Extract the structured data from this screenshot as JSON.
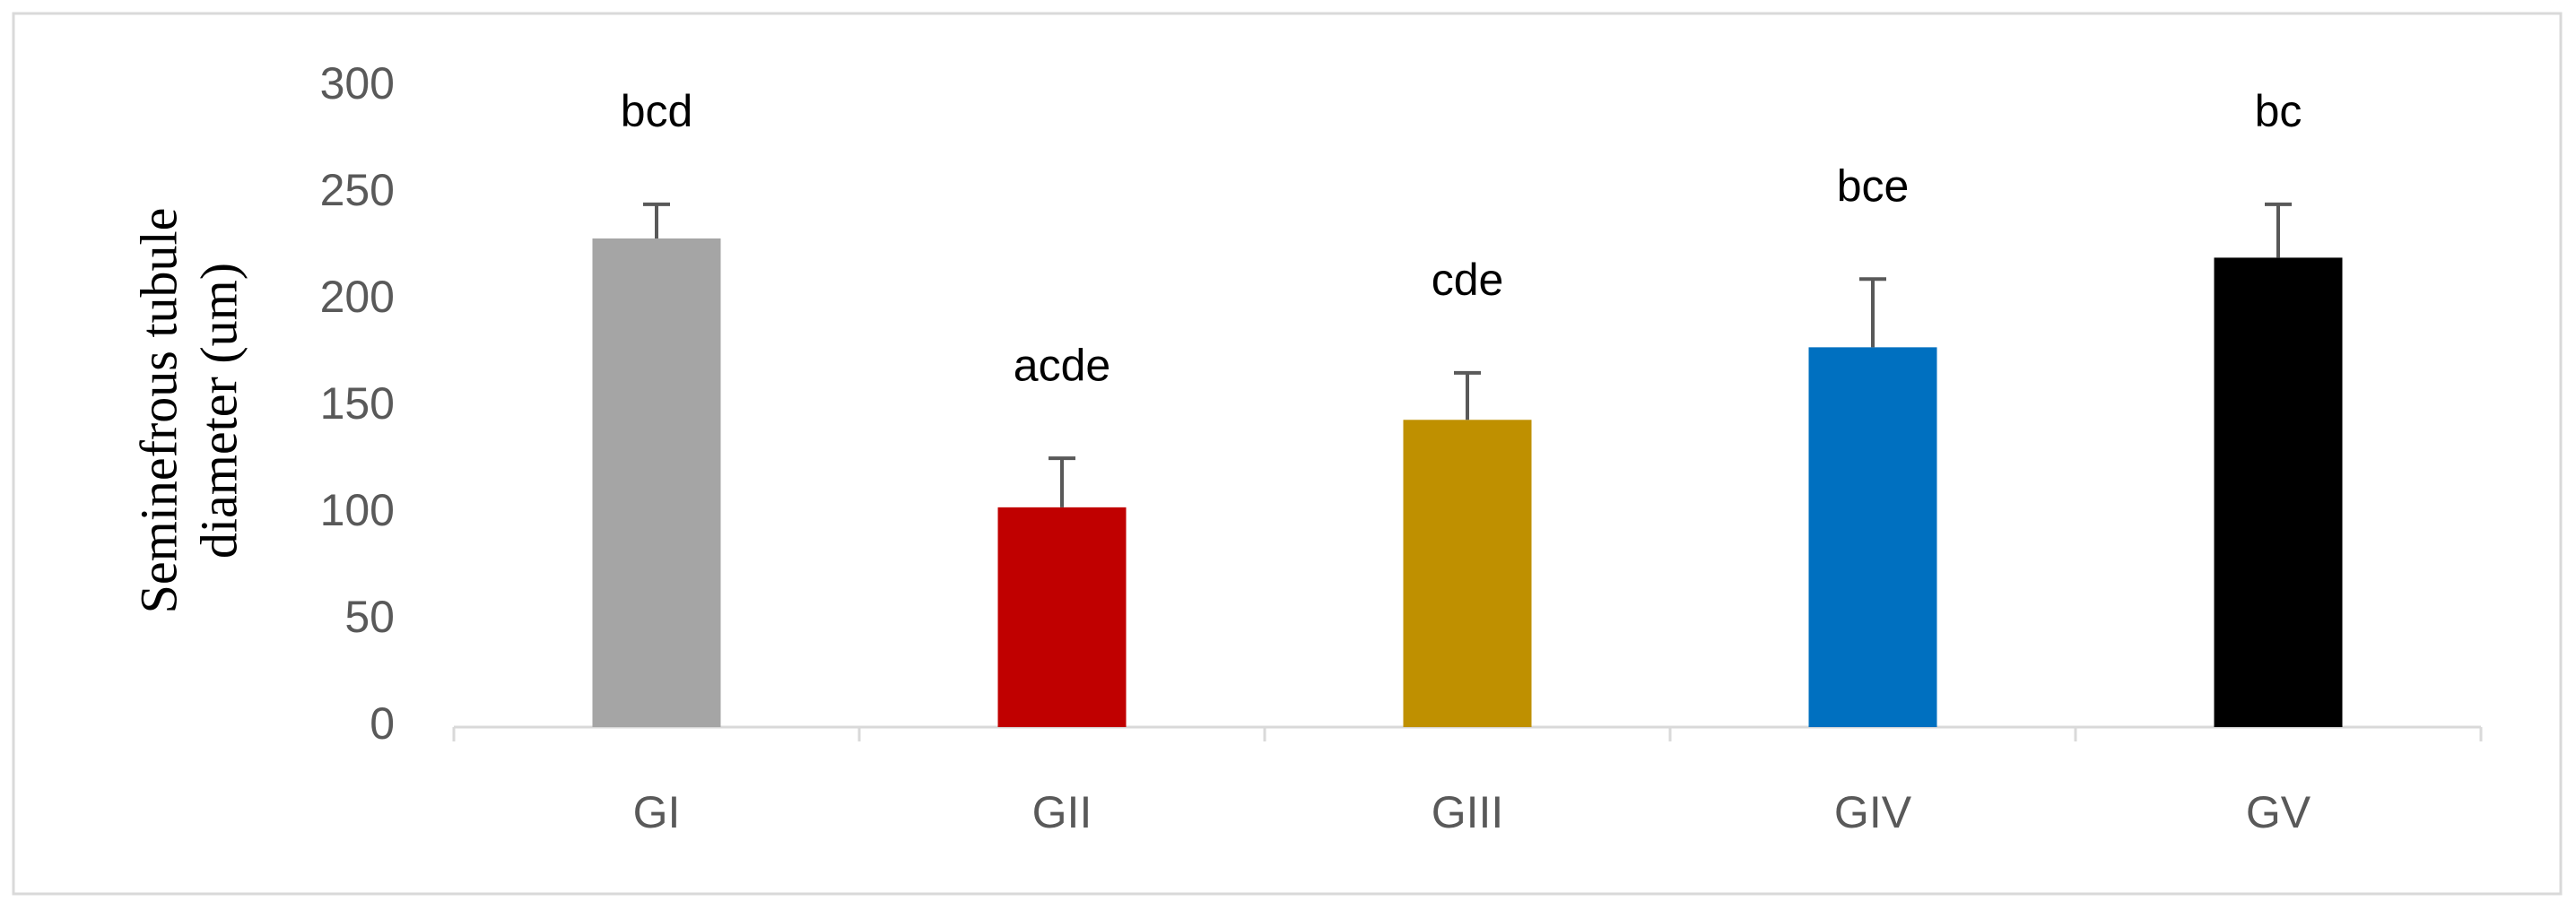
{
  "chart_data": {
    "type": "bar",
    "y_label": [
      "Seminefrous tubule",
      "diameter (um)"
    ],
    "categories": [
      "GI",
      "GII",
      "GIII",
      "GIV",
      "GV"
    ],
    "values": [
      229,
      103,
      144,
      178,
      220
    ],
    "errors": [
      16,
      23,
      22,
      32,
      25
    ],
    "annotations": [
      "bcd",
      "acde",
      "cde",
      "bce",
      "bc"
    ],
    "colors": [
      "#a5a5a5",
      "#c00000",
      "#bf9000",
      "#0070c0",
      "#000000"
    ],
    "ylim": [
      0,
      300
    ],
    "yticks": [
      0,
      50,
      100,
      150,
      200,
      250,
      300
    ],
    "grid": false
  }
}
